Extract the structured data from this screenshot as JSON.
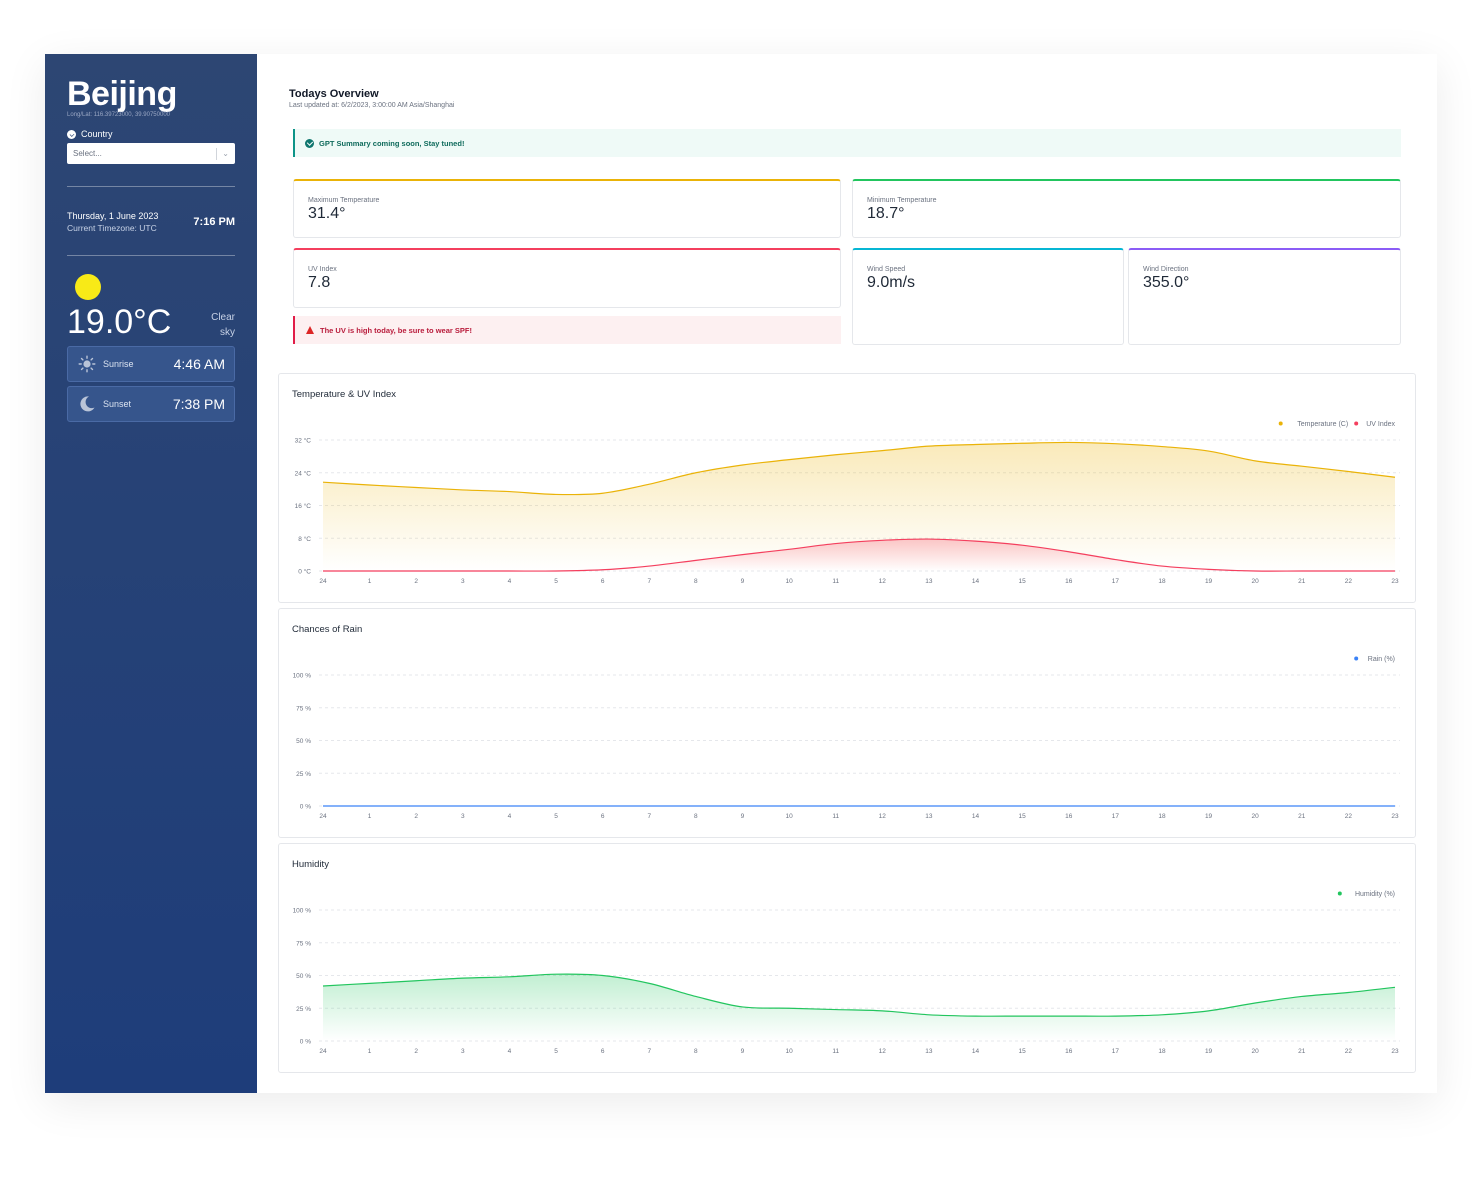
{
  "sidebar": {
    "city": "Beijing",
    "coords": "Long/Lat: 116.39723000, 39.90750000",
    "country_label": "Country",
    "country_placeholder": "Select...",
    "date": "Thursday, 1 June 2023",
    "timezone": "Current Timezone: UTC",
    "time": "7:16 PM",
    "temperature": "19.0°C",
    "description": "Clear sky",
    "sunrise_label": "Sunrise",
    "sunrise_time": "4:46 AM",
    "sunset_label": "Sunset",
    "sunset_time": "7:38 PM",
    "sun_color": "#f8ea17"
  },
  "overview": {
    "title": "Todays Overview",
    "updated": "Last updated at: 6/2/2023, 3:00:00 AM Asia/Shanghai",
    "gpt_notice": "GPT Summary coming soon, Stay tuned!",
    "uv_alert": "The UV is high today, be sure to wear SPF!"
  },
  "cards": {
    "max_temp": {
      "label": "Maximum Temperature",
      "value": "31.4°",
      "color": "#eab308"
    },
    "min_temp": {
      "label": "Minimum Temperature",
      "value": "18.7°",
      "color": "#22c55e"
    },
    "uv": {
      "label": "UV Index",
      "value": "7.8",
      "color": "#f43f5e"
    },
    "wind_speed": {
      "label": "Wind Speed",
      "value": "9.0m/s",
      "color": "#06b6d4"
    },
    "wind_dir": {
      "label": "Wind Direction",
      "value": "355.0°",
      "color": "#8b5cf6"
    }
  },
  "chart_data": [
    {
      "type": "area",
      "title": "Temperature & UV Index",
      "categories": [
        "24",
        "1",
        "2",
        "3",
        "4",
        "5",
        "6",
        "7",
        "8",
        "9",
        "10",
        "11",
        "12",
        "13",
        "14",
        "15",
        "16",
        "17",
        "18",
        "19",
        "20",
        "21",
        "22",
        "23"
      ],
      "ylim": [
        0,
        32
      ],
      "yticks": [
        "0 °C",
        "8 °C",
        "16 °C",
        "24 °C",
        "32 °C"
      ],
      "ytick_values": [
        0,
        8,
        16,
        24,
        32
      ],
      "legend_position": "top-right",
      "grid": true,
      "series": [
        {
          "name": "Temperature (C)",
          "color": "#eab308",
          "values": [
            21.7,
            21.0,
            20.4,
            19.8,
            19.4,
            18.7,
            19.0,
            21.2,
            24.0,
            25.9,
            27.2,
            28.4,
            29.4,
            30.5,
            30.9,
            31.2,
            31.4,
            31.1,
            30.4,
            29.3,
            26.9,
            25.6,
            24.3,
            22.9
          ]
        },
        {
          "name": "UV Index",
          "color": "#f43f5e",
          "values": [
            0,
            0,
            0,
            0,
            0,
            0,
            0.3,
            1.2,
            2.6,
            4.0,
            5.3,
            6.7,
            7.5,
            7.8,
            7.3,
            6.3,
            4.7,
            2.8,
            1.2,
            0.4,
            0,
            0,
            0,
            0
          ]
        }
      ]
    },
    {
      "type": "area",
      "title": "Chances of Rain",
      "categories": [
        "24",
        "1",
        "2",
        "3",
        "4",
        "5",
        "6",
        "7",
        "8",
        "9",
        "10",
        "11",
        "12",
        "13",
        "14",
        "15",
        "16",
        "17",
        "18",
        "19",
        "20",
        "21",
        "22",
        "23"
      ],
      "ylim": [
        0,
        100
      ],
      "yticks": [
        "0 %",
        "25 %",
        "50 %",
        "75 %",
        "100 %"
      ],
      "ytick_values": [
        0,
        25,
        50,
        75,
        100
      ],
      "legend_position": "top-right",
      "grid": true,
      "series": [
        {
          "name": "Rain (%)",
          "color": "#3b82f6",
          "values": [
            0,
            0,
            0,
            0,
            0,
            0,
            0,
            0,
            0,
            0,
            0,
            0,
            0,
            0,
            0,
            0,
            0,
            0,
            0,
            0,
            0,
            0,
            0,
            0
          ]
        }
      ]
    },
    {
      "type": "area",
      "title": "Humidity",
      "categories": [
        "24",
        "1",
        "2",
        "3",
        "4",
        "5",
        "6",
        "7",
        "8",
        "9",
        "10",
        "11",
        "12",
        "13",
        "14",
        "15",
        "16",
        "17",
        "18",
        "19",
        "20",
        "21",
        "22",
        "23"
      ],
      "ylim": [
        0,
        100
      ],
      "yticks": [
        "0 %",
        "25 %",
        "50 %",
        "75 %",
        "100 %"
      ],
      "ytick_values": [
        0,
        25,
        50,
        75,
        100
      ],
      "legend_position": "top-right",
      "grid": true,
      "series": [
        {
          "name": "Humidity (%)",
          "color": "#22c55e",
          "values": [
            42,
            44,
            46,
            48,
            49,
            51,
            50,
            44,
            34,
            26,
            25,
            24,
            23,
            20,
            19,
            19,
            19,
            19,
            20,
            23,
            29,
            34,
            37,
            41
          ]
        }
      ]
    }
  ]
}
